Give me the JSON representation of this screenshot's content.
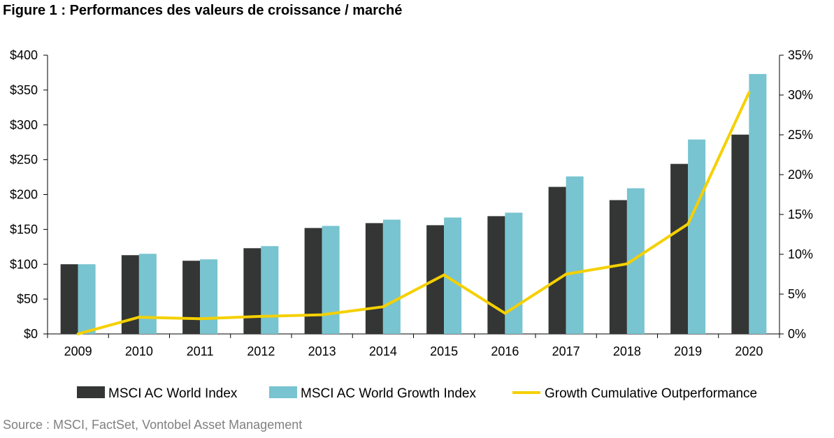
{
  "title": "Figure 1 : Performances des valeurs de croissance / marché",
  "source": "Source : MSCI, FactSet, Vontobel Asset Management",
  "colors": {
    "world": "#333634",
    "growth": "#78c4d1",
    "line": "#f5d000",
    "axis": "#000000"
  },
  "chart_data": {
    "type": "bar",
    "categories": [
      "2009",
      "2010",
      "2011",
      "2012",
      "2013",
      "2014",
      "2015",
      "2016",
      "2017",
      "2018",
      "2019",
      "2020"
    ],
    "series": [
      {
        "name": "MSCI AC World Index",
        "type": "bar",
        "axis": "left",
        "values": [
          100,
          113,
          105,
          123,
          152,
          159,
          156,
          169,
          211,
          192,
          244,
          286
        ]
      },
      {
        "name": "MSCI AC World Growth Index",
        "type": "bar",
        "axis": "left",
        "values": [
          100,
          115,
          107,
          126,
          155,
          164,
          167,
          174,
          226,
          209,
          279,
          373
        ]
      },
      {
        "name": "Growth Cumulative Outperformance",
        "type": "line",
        "axis": "right",
        "values": [
          0.0,
          2.1,
          1.9,
          2.2,
          2.4,
          3.4,
          7.4,
          2.6,
          7.5,
          8.8,
          13.8,
          30.3
        ]
      }
    ],
    "y_left": {
      "min": 0,
      "max": 400,
      "ticks": [
        "$0",
        "$50",
        "$100",
        "$150",
        "$200",
        "$250",
        "$300",
        "$350",
        "$400"
      ]
    },
    "y_right": {
      "min": 0,
      "max": 35,
      "ticks": [
        "0%",
        "5%",
        "10%",
        "15%",
        "20%",
        "25%",
        "30%",
        "35%"
      ]
    },
    "grid": false,
    "legend": "bottom"
  }
}
